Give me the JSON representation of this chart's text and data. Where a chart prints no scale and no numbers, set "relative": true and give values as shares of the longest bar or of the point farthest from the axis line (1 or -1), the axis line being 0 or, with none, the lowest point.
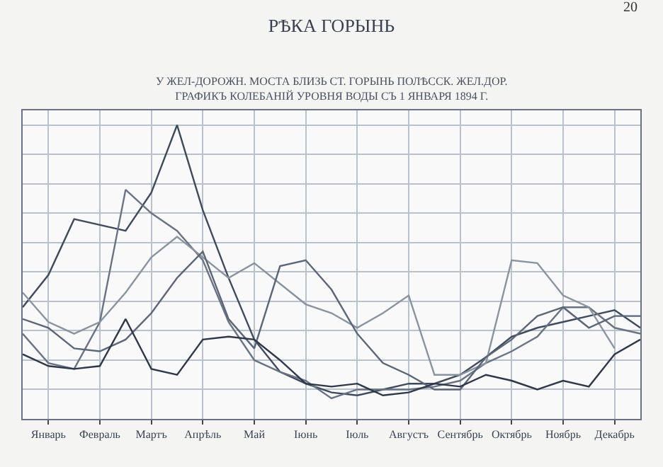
{
  "chart_data": {
    "type": "line",
    "relative": true,
    "title": "РѢКА ГОРЫНЬ",
    "subtitle": "У ЖЕЛ-ДОРОЖН. МОСТА БЛИЗЬ СТ. ГОРЫНЬ ПОЛѢССК. ЖЕЛ.ДОР.\nГРАФИКЪ КОЛЕБАНІЙ УРОВНЯ ВОДЫ СЪ 1 ЯНВАРЯ 1894 Г.",
    "annotations": [
      "20"
    ],
    "categories": [
      null,
      "Январь",
      null,
      "Февраль",
      null,
      "Мартъ",
      null,
      "Апрѣль",
      null,
      "Май",
      null,
      "Іюнь",
      null,
      "Іюль",
      null,
      "Августъ",
      null,
      "Сентябрь",
      null,
      "Октябрь",
      null,
      "Ноябрь",
      null,
      "Декабрь",
      null
    ],
    "grid": true,
    "marker": "none",
    "line_style": "solid",
    "series": [
      {
        "color": "#3f4a5c",
        "values": [
          0.38,
          0.49,
          0.68,
          0.66,
          0.64,
          0.77,
          1,
          0.71,
          0.48,
          0.27,
          0.16,
          0.12,
          0.09,
          0.08,
          0.1,
          0.12,
          0.12,
          0.15,
          0.21,
          0.28,
          0.31,
          0.33,
          0.35,
          0.37,
          0.31
        ]
      },
      {
        "color": "#6a7384",
        "values": [
          0.29,
          0.19,
          0.17,
          0.33,
          0.78,
          0.7,
          0.64,
          0.54,
          0.33,
          0.2,
          0.16,
          0.13,
          0.07,
          0.1,
          0.1,
          0.1,
          0.11,
          0.13,
          0.19,
          0.23,
          0.28,
          0.38,
          0.38,
          0.31,
          0.29
        ]
      },
      {
        "color": "#8a93a0",
        "values": [
          0.43,
          0.33,
          0.29,
          0.33,
          0.43,
          0.55,
          0.62,
          0.55,
          0.48,
          0.53,
          0.46,
          0.39,
          0.36,
          0.31,
          0.36,
          0.42,
          0.15,
          0.15,
          0.19,
          0.54,
          0.53,
          0.42,
          0.38,
          0.24,
          null
        ]
      },
      {
        "color": "#5c6677",
        "values": [
          0.34,
          0.31,
          0.24,
          0.23,
          0.27,
          0.36,
          0.48,
          0.57,
          0.34,
          0.24,
          0.52,
          0.54,
          0.44,
          0.29,
          0.19,
          0.15,
          0.1,
          0.1,
          0.21,
          0.27,
          0.35,
          0.38,
          0.31,
          0.35,
          0.35
        ]
      },
      {
        "color": "#2f3848",
        "values": [
          0.22,
          0.18,
          0.17,
          0.18,
          0.34,
          0.17,
          0.15,
          0.27,
          0.28,
          0.27,
          0.2,
          0.12,
          0.11,
          0.12,
          0.08,
          0.09,
          0.12,
          0.11,
          0.15,
          0.13,
          0.1,
          0.13,
          0.11,
          0.22,
          0.27
        ]
      }
    ]
  }
}
